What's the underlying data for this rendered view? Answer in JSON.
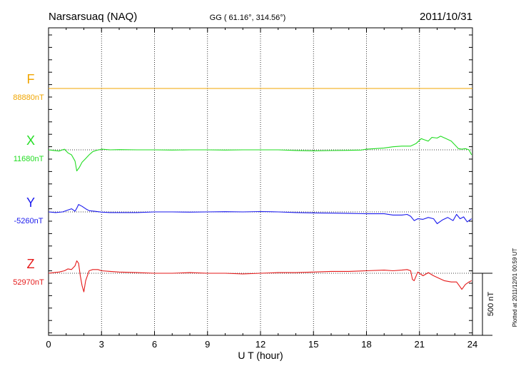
{
  "chart_data": {
    "type": "line",
    "title": "Narsarsuaq (NAQ)",
    "coords": "GG ( 61.16°, 314.56°)",
    "date": "2011/10/31",
    "xlabel": "U T (hour)",
    "xlim": [
      0,
      24
    ],
    "xticks": [
      0,
      3,
      6,
      9,
      12,
      15,
      18,
      21,
      24
    ],
    "grid": true,
    "scale_label": "500 nT",
    "plotted_note": "Plotted at 2011/12/01 00:59 UT",
    "series": [
      {
        "name": "F",
        "baseline_label": "88880nT",
        "color": "#f0a500",
        "x": [
          0,
          6,
          12,
          18,
          24
        ],
        "values": [
          0,
          0,
          0,
          0,
          0
        ]
      },
      {
        "name": "X",
        "baseline_label": "11680nT",
        "color": "#22dd22",
        "x": [
          0,
          0.3,
          0.6,
          0.9,
          1.1,
          1.3,
          1.5,
          1.6,
          1.75,
          1.9,
          2.1,
          2.3,
          2.5,
          2.7,
          3,
          3.5,
          4,
          5,
          6,
          7,
          8,
          9,
          10,
          11,
          12,
          13,
          14,
          15,
          16,
          17,
          17.7,
          18,
          18.5,
          19,
          19.5,
          20,
          20.5,
          20.8,
          21.1,
          21.3,
          21.5,
          21.7,
          22,
          22.2,
          22.5,
          22.8,
          23,
          23.2,
          23.4,
          23.6,
          23.8,
          23.95
        ],
        "values": [
          0,
          -5,
          -10,
          5,
          -25,
          -40,
          -90,
          -170,
          -140,
          -100,
          -70,
          -40,
          -15,
          -5,
          5,
          0,
          2,
          0,
          0,
          -2,
          0,
          0,
          -2,
          0,
          0,
          0,
          -5,
          -8,
          -6,
          -4,
          -2,
          5,
          10,
          15,
          25,
          30,
          30,
          50,
          90,
          80,
          70,
          100,
          95,
          110,
          90,
          70,
          40,
          10,
          5,
          10,
          0,
          -40
        ]
      },
      {
        "name": "Y",
        "baseline_label": "-5260nT",
        "color": "#1a1aee",
        "x": [
          0,
          0.4,
          0.8,
          1.1,
          1.3,
          1.5,
          1.6,
          1.7,
          1.9,
          2.1,
          2.3,
          2.6,
          3,
          3.5,
          4,
          5,
          6,
          7,
          8,
          9,
          10,
          11,
          12,
          13,
          14,
          15,
          16,
          17,
          18,
          19,
          19.5,
          20,
          20.3,
          20.5,
          20.7,
          20.9,
          21.2,
          21.5,
          21.8,
          22,
          22.3,
          22.6,
          22.9,
          23.1,
          23.3,
          23.5,
          23.7,
          23.95
        ],
        "values": [
          0,
          -5,
          0,
          15,
          25,
          5,
          30,
          60,
          45,
          25,
          10,
          5,
          -2,
          -5,
          -5,
          -5,
          0,
          0,
          -2,
          0,
          2,
          0,
          3,
          0,
          -5,
          -8,
          -10,
          -12,
          -15,
          -15,
          -25,
          -25,
          -20,
          -35,
          -70,
          -55,
          -60,
          -45,
          -55,
          -95,
          -65,
          -45,
          -70,
          -20,
          -55,
          -40,
          -80,
          -55
        ]
      },
      {
        "name": "Z",
        "baseline_label": "52970nT",
        "color": "#e51a1a",
        "x": [
          0,
          0.3,
          0.6,
          0.9,
          1.1,
          1.3,
          1.5,
          1.6,
          1.7,
          1.8,
          1.9,
          2.0,
          2.1,
          2.3,
          2.5,
          2.8,
          3,
          3.5,
          4,
          5,
          6,
          7,
          8,
          9,
          10,
          11,
          12,
          13,
          14,
          15,
          16,
          17,
          18,
          19,
          19.5,
          20,
          20.3,
          20.5,
          20.6,
          20.7,
          20.9,
          21.2,
          21.5,
          21.8,
          22.1,
          22.4,
          22.8,
          23.1,
          23.3,
          23.4,
          23.6,
          23.8,
          23.95
        ],
        "values": [
          0,
          5,
          10,
          20,
          35,
          30,
          60,
          100,
          80,
          -20,
          -100,
          -150,
          -60,
          20,
          30,
          30,
          20,
          15,
          10,
          5,
          0,
          0,
          5,
          0,
          0,
          -5,
          0,
          5,
          5,
          10,
          15,
          15,
          20,
          25,
          20,
          25,
          30,
          20,
          -50,
          -60,
          10,
          -20,
          5,
          -20,
          -40,
          -60,
          -70,
          -70,
          -110,
          -130,
          -90,
          -70,
          -60
        ]
      }
    ]
  }
}
